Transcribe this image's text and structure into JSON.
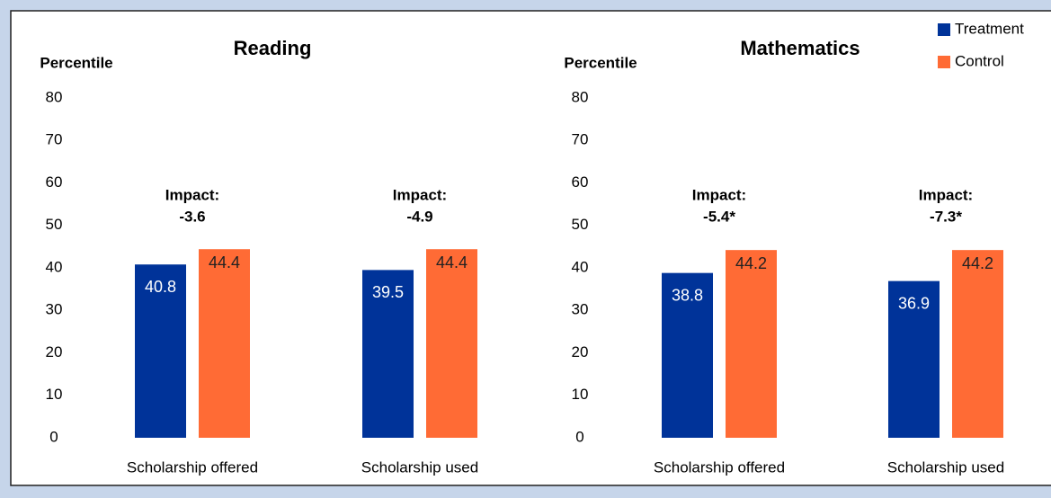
{
  "chart_data": [
    {
      "type": "bar",
      "title": "Reading",
      "ylabel": "Percentile",
      "categories": [
        "Scholarship offered",
        "Scholarship used"
      ],
      "series": [
        {
          "name": "Treatment",
          "color": "#003399",
          "values": [
            40.8,
            39.5
          ]
        },
        {
          "name": "Control",
          "color": "#ff6b35",
          "values": [
            44.4,
            44.4
          ]
        }
      ],
      "annotations": [
        [
          "Impact:",
          "-3.6"
        ],
        [
          "Impact:",
          "-4.9"
        ]
      ],
      "ylim": [
        0,
        80
      ],
      "yticks": [
        0,
        10,
        20,
        30,
        40,
        50,
        60,
        70,
        80
      ]
    },
    {
      "type": "bar",
      "title": "Mathematics",
      "ylabel": "Percentile",
      "categories": [
        "Scholarship offered",
        "Scholarship used"
      ],
      "series": [
        {
          "name": "Treatment",
          "color": "#003399",
          "values": [
            38.8,
            36.9
          ]
        },
        {
          "name": "Control",
          "color": "#ff6b35",
          "values": [
            44.2,
            44.2
          ]
        }
      ],
      "annotations": [
        [
          "Impact:",
          "-5.4*"
        ],
        [
          "Impact:",
          "-7.3*"
        ]
      ],
      "ylim": [
        0,
        80
      ],
      "yticks": [
        0,
        10,
        20,
        30,
        40,
        50,
        60,
        70,
        80
      ]
    }
  ]
}
